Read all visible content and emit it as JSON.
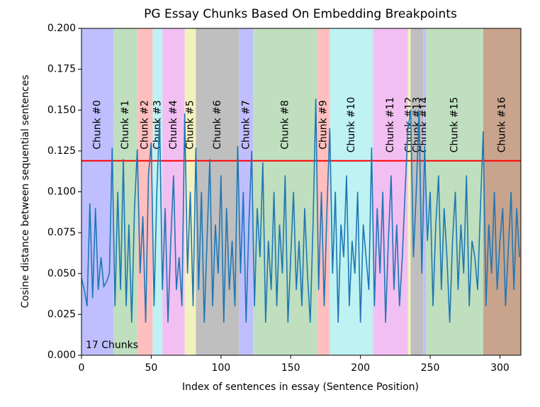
{
  "chart_data": {
    "type": "line",
    "title": "PG Essay Chunks Based On Embedding Breakpoints",
    "xlabel": "Index of sentences in essay (Sentence Position)",
    "ylabel": "Cosine distance between sequential sentences",
    "annotation": "17 Chunks",
    "xlim": [
      0,
      315
    ],
    "xticks": [
      0,
      50,
      100,
      150,
      200,
      250,
      300
    ],
    "ylim": [
      0,
      0.2
    ],
    "yticks": [
      {
        "value": 0,
        "label": "0.000"
      },
      {
        "value": 0.025,
        "label": "0.025"
      },
      {
        "value": 0.05,
        "label": "0.050"
      },
      {
        "value": 0.075,
        "label": "0.075"
      },
      {
        "value": 0.1,
        "label": "0.100"
      },
      {
        "value": 0.125,
        "label": "0.125"
      },
      {
        "value": 0.15,
        "label": "0.150"
      },
      {
        "value": 0.175,
        "label": "0.175"
      },
      {
        "value": 0.2,
        "label": "0.200"
      }
    ],
    "threshold": 0.119,
    "threshold_color": "#ff0000",
    "chunks": [
      {
        "label": "Chunk #0",
        "start": 0,
        "end": 23,
        "color": "#bfbfff"
      },
      {
        "label": "Chunk #1",
        "start": 23,
        "end": 40,
        "color": "#bfdfbf"
      },
      {
        "label": "Chunk #2",
        "start": 40,
        "end": 51,
        "color": "#ffbfbf"
      },
      {
        "label": "Chunk #3",
        "start": 51,
        "end": 58,
        "color": "#bff2f2"
      },
      {
        "label": "Chunk #4",
        "start": 58,
        "end": 74,
        "color": "#f2bff2"
      },
      {
        "label": "Chunk #5",
        "start": 74,
        "end": 82,
        "color": "#f2f2bf"
      },
      {
        "label": "Chunk #6",
        "start": 82,
        "end": 113,
        "color": "#bfbfbf"
      },
      {
        "label": "Chunk #7",
        "start": 113,
        "end": 123,
        "color": "#bfbfff"
      },
      {
        "label": "Chunk #8",
        "start": 123,
        "end": 169,
        "color": "#bfdfbf"
      },
      {
        "label": "Chunk #9",
        "start": 169,
        "end": 178,
        "color": "#ffbfbf"
      },
      {
        "label": "Chunk #10",
        "start": 178,
        "end": 209,
        "color": "#bff2f2"
      },
      {
        "label": "Chunk #11",
        "start": 209,
        "end": 234,
        "color": "#f2bff2"
      },
      {
        "label": "Chunk #12",
        "start": 234,
        "end": 236,
        "color": "#f2f2bf"
      },
      {
        "label": "Chunk #13",
        "start": 236,
        "end": 245,
        "color": "#bfbfbf"
      },
      {
        "label": "Chunk #14",
        "start": 245,
        "end": 247,
        "color": "#bfbfff"
      },
      {
        "label": "Chunk #15",
        "start": 247,
        "end": 288,
        "color": "#bfdfbf"
      },
      {
        "label": "Chunk #16",
        "start": 288,
        "end": 315,
        "color": "#c8a48c"
      }
    ],
    "color": "#1f77b4",
    "x": [
      0,
      2,
      4,
      6,
      8,
      10,
      12,
      14,
      16,
      18,
      20,
      22,
      24,
      26,
      28,
      30,
      32,
      34,
      36,
      38,
      40,
      42,
      44,
      46,
      48,
      50,
      52,
      54,
      56,
      58,
      60,
      62,
      64,
      66,
      68,
      70,
      72,
      74,
      76,
      78,
      80,
      82,
      84,
      86,
      88,
      90,
      92,
      94,
      96,
      98,
      100,
      102,
      104,
      106,
      108,
      110,
      112,
      114,
      116,
      118,
      120,
      122,
      124,
      126,
      128,
      130,
      132,
      134,
      136,
      138,
      140,
      142,
      144,
      146,
      148,
      150,
      152,
      154,
      156,
      158,
      160,
      162,
      164,
      166,
      168,
      170,
      172,
      174,
      176,
      178,
      180,
      182,
      184,
      186,
      188,
      190,
      192,
      194,
      196,
      198,
      200,
      202,
      204,
      206,
      208,
      210,
      212,
      214,
      216,
      218,
      220,
      222,
      224,
      226,
      228,
      230,
      232,
      234,
      236,
      238,
      240,
      242,
      244,
      246,
      248,
      250,
      252,
      254,
      256,
      258,
      260,
      262,
      264,
      266,
      268,
      270,
      272,
      274,
      276,
      278,
      280,
      282,
      284,
      286,
      288,
      290,
      292,
      294,
      296,
      298,
      300,
      302,
      304,
      306,
      308,
      310,
      312,
      314
    ],
    "values": [
      0.047,
      0.04,
      0.03,
      0.093,
      0.035,
      0.09,
      0.04,
      0.06,
      0.042,
      0.045,
      0.05,
      0.127,
      0.03,
      0.1,
      0.04,
      0.12,
      0.03,
      0.08,
      0.02,
      0.09,
      0.126,
      0.05,
      0.085,
      0.02,
      0.11,
      0.13,
      0.03,
      0.1,
      0.145,
      0.04,
      0.09,
      0.02,
      0.07,
      0.11,
      0.04,
      0.06,
      0.03,
      0.148,
      0.05,
      0.1,
      0.03,
      0.127,
      0.04,
      0.1,
      0.02,
      0.07,
      0.12,
      0.03,
      0.08,
      0.05,
      0.11,
      0.02,
      0.09,
      0.04,
      0.07,
      0.03,
      0.128,
      0.05,
      0.1,
      0.02,
      0.08,
      0.125,
      0.03,
      0.09,
      0.06,
      0.118,
      0.02,
      0.07,
      0.04,
      0.1,
      0.03,
      0.08,
      0.05,
      0.11,
      0.02,
      0.06,
      0.1,
      0.04,
      0.07,
      0.03,
      0.09,
      0.05,
      0.02,
      0.08,
      0.157,
      0.04,
      0.1,
      0.03,
      0.09,
      0.139,
      0.05,
      0.1,
      0.02,
      0.08,
      0.06,
      0.11,
      0.03,
      0.07,
      0.05,
      0.1,
      0.02,
      0.08,
      0.06,
      0.04,
      0.127,
      0.03,
      0.09,
      0.05,
      0.1,
      0.02,
      0.07,
      0.11,
      0.04,
      0.08,
      0.03,
      0.06,
      0.1,
      0.138,
      0.15,
      0.06,
      0.1,
      0.15,
      0.05,
      0.128,
      0.07,
      0.1,
      0.03,
      0.08,
      0.11,
      0.04,
      0.09,
      0.06,
      0.02,
      0.07,
      0.1,
      0.04,
      0.08,
      0.05,
      0.11,
      0.03,
      0.07,
      0.06,
      0.04,
      0.09,
      0.137,
      0.03,
      0.08,
      0.05,
      0.1,
      0.04,
      0.07,
      0.09,
      0.03,
      0.065,
      0.1,
      0.04,
      0.09,
      0.06
    ]
  }
}
